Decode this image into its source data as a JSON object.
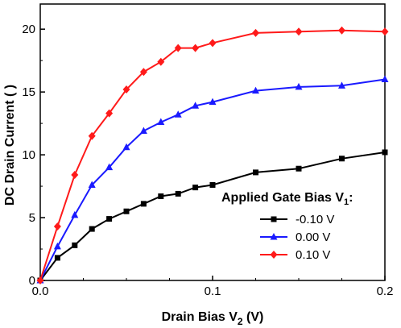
{
  "chart_data": {
    "type": "line",
    "title": "",
    "xlabel": "Drain Bias V",
    "xlabel_subscript": "2",
    "xlabel_unit": " (V)",
    "ylabel": "DC Drain Current (     )",
    "xlim": [
      0.0,
      0.2
    ],
    "ylim": [
      0,
      22
    ],
    "xticks": [
      0.0,
      0.1,
      0.2
    ],
    "xtick_labels": [
      "0.0",
      "0.1",
      "0.2"
    ],
    "yticks": [
      0,
      5,
      10,
      15,
      20
    ],
    "ytick_labels": [
      "0",
      "5",
      "10",
      "15",
      "20"
    ],
    "grid": false,
    "legend_title": "Applied Gate Bias V",
    "legend_title_subscript": "1",
    "legend_title_suffix": ":",
    "legend_position": "bottom-right",
    "series": [
      {
        "name": "-0.10 V",
        "color": "#000000",
        "marker": "square",
        "x": [
          0,
          0.01,
          0.02,
          0.03,
          0.04,
          0.05,
          0.06,
          0.07,
          0.08,
          0.09,
          0.1,
          0.125,
          0.15,
          0.175,
          0.2
        ],
        "y": [
          0,
          1.8,
          2.8,
          4.1,
          4.9,
          5.5,
          6.1,
          6.7,
          6.9,
          7.4,
          7.6,
          8.6,
          8.9,
          9.7,
          10.2
        ]
      },
      {
        "name": "0.00 V",
        "color": "#1a1aff",
        "marker": "triangle",
        "x": [
          0,
          0.01,
          0.02,
          0.03,
          0.04,
          0.05,
          0.06,
          0.07,
          0.08,
          0.09,
          0.1,
          0.125,
          0.15,
          0.175,
          0.2
        ],
        "y": [
          0,
          2.7,
          5.2,
          7.6,
          9.0,
          10.6,
          11.9,
          12.6,
          13.2,
          13.9,
          14.2,
          15.1,
          15.4,
          15.5,
          16.0
        ]
      },
      {
        "name": "0.10 V",
        "color": "#ff1a1a",
        "marker": "diamond",
        "x": [
          0,
          0.01,
          0.02,
          0.03,
          0.04,
          0.05,
          0.06,
          0.07,
          0.08,
          0.09,
          0.1,
          0.125,
          0.15,
          0.175,
          0.2
        ],
        "y": [
          0,
          4.3,
          8.4,
          11.5,
          13.3,
          15.2,
          16.6,
          17.4,
          18.5,
          18.5,
          18.9,
          19.7,
          19.8,
          19.9,
          19.8
        ]
      }
    ]
  }
}
